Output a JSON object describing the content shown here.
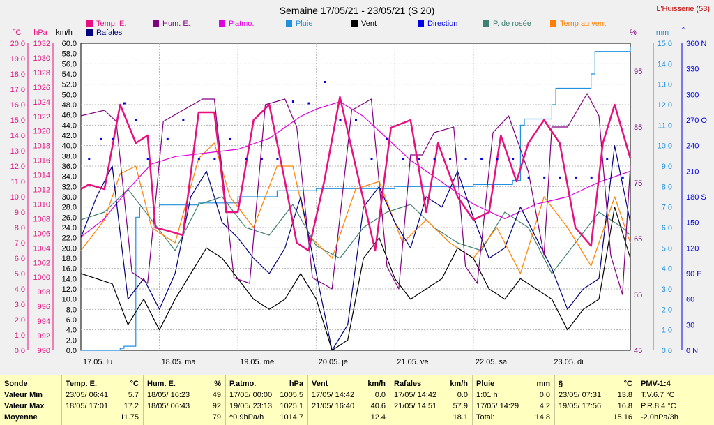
{
  "title": "Semaine 17/05/21 - 23/05/21 (S 20)",
  "station": "L'Huisserie (53)",
  "legend": [
    {
      "label": "Temp. E.",
      "color": "#e8107f"
    },
    {
      "label": "Hum. E.",
      "color": "#800080"
    },
    {
      "label": "P.atmo.",
      "color": "#e000e0"
    },
    {
      "label": "Pluie",
      "color": "#1e90e0"
    },
    {
      "label": "Vent",
      "color": "#000000"
    },
    {
      "label": "Direction",
      "color": "#0000e8"
    },
    {
      "label": "P. de rosée",
      "color": "#408070"
    },
    {
      "label": "Temp au vent",
      "color": "#ff8000"
    },
    {
      "label": "Rafales",
      "color": "#000080"
    }
  ],
  "axis_units": {
    "temp": "°C",
    "press": "hPa",
    "wind": "km/h",
    "hum": "%",
    "rain": "mm",
    "dir": "°"
  },
  "x_labels": [
    "17.05. lu",
    "18.05. ma",
    "19.05. me",
    "20.05. je",
    "21.05. ve",
    "22.05. sa",
    "23.05. di"
  ],
  "y_temp_ticks": [
    "20.0",
    "19.0",
    "18.0",
    "17.0",
    "16.0",
    "15.0",
    "14.0",
    "13.0",
    "12.0",
    "11.0",
    "10.0",
    "9.0",
    "8.0",
    "7.0",
    "6.0",
    "5.0",
    "4.0",
    "3.0",
    "2.0",
    "1.0",
    "0.0"
  ],
  "y_press_ticks": [
    "1032",
    "1030",
    "1028",
    "1026",
    "1024",
    "1022",
    "1020",
    "1018",
    "1016",
    "1014",
    "1012",
    "1010",
    "1008",
    "1006",
    "1004",
    "1002",
    "1000",
    "998",
    "996",
    "994",
    "992",
    "990"
  ],
  "y_wind_ticks": [
    "60.0",
    "58.0",
    "56.0",
    "54.0",
    "52.0",
    "50.0",
    "48.0",
    "46.0",
    "44.0",
    "42.0",
    "40.0",
    "38.0",
    "36.0",
    "34.0",
    "32.0",
    "30.0",
    "28.0",
    "26.0",
    "24.0",
    "22.0",
    "20.0",
    "18.0",
    "16.0",
    "14.0",
    "12.0",
    "10.0",
    "8.0",
    "6.0",
    "4.0",
    "2.0",
    "0.0"
  ],
  "y_hum_ticks": [
    "95",
    "85",
    "75",
    "65",
    "55",
    "45"
  ],
  "y_rain_ticks": [
    "15.0",
    "14.0",
    "13.0",
    "12.0",
    "11.0",
    "10.0",
    "9.0",
    "8.0",
    "7.0",
    "6.0",
    "5.0",
    "4.0",
    "3.0",
    "2.0",
    "1.0",
    "0.0"
  ],
  "y_dir_ticks": [
    "360 N",
    "330",
    "300",
    "270 O",
    "240",
    "210",
    "180 S",
    "150",
    "120",
    "90 E",
    "60",
    "30",
    "0 N"
  ],
  "chart_data": {
    "type": "line",
    "title": "Semaine 17/05/21 - 23/05/21 (S 20)",
    "xlabel": "",
    "ylabel": "",
    "xlim": [
      0,
      7
    ],
    "grid": true,
    "series": [
      {
        "name": "Temp. E.",
        "unit": "°C",
        "ylim": [
          0,
          20
        ],
        "x": [
          0,
          0.1,
          0.3,
          0.5,
          0.7,
          0.85,
          0.95,
          1.1,
          1.3,
          1.5,
          1.7,
          1.85,
          2.0,
          2.2,
          2.4,
          2.6,
          2.75,
          2.9,
          3.1,
          3.3,
          3.5,
          3.75,
          3.95,
          4.2,
          4.4,
          4.55,
          4.8,
          5.0,
          5.2,
          5.35,
          5.55,
          5.7,
          5.9,
          6.1,
          6.3,
          6.5,
          6.65,
          6.8,
          7.0
        ],
        "values": [
          10.5,
          10.8,
          10.5,
          16.0,
          13.5,
          14.0,
          8.0,
          7.8,
          7.5,
          15.5,
          15.5,
          9.0,
          9.0,
          15.0,
          16.0,
          11.0,
          7.0,
          6.5,
          11.0,
          16.5,
          12.0,
          6.5,
          14.5,
          15.0,
          9.0,
          13.5,
          10.0,
          8.5,
          9.0,
          14.0,
          11.0,
          13.5,
          15.0,
          13.5,
          8.0,
          6.8,
          13.5,
          16.0,
          12.5
        ]
      },
      {
        "name": "Hum. E.",
        "unit": "%",
        "ylim": [
          45,
          100
        ],
        "x": [
          0,
          0.3,
          0.45,
          0.65,
          0.85,
          1.05,
          1.3,
          1.55,
          1.7,
          1.95,
          2.15,
          2.35,
          2.6,
          2.75,
          2.95,
          3.2,
          3.45,
          3.7,
          3.9,
          4.05,
          4.2,
          4.35,
          4.5,
          4.75,
          4.9,
          5.05,
          5.25,
          5.45,
          5.7,
          5.9,
          6.0,
          6.2,
          6.45,
          6.6,
          6.75,
          6.9,
          7.0
        ],
        "values": [
          87,
          88,
          86,
          59,
          57,
          86,
          88,
          90,
          90,
          58,
          57,
          89,
          90,
          85,
          58,
          56,
          88,
          90,
          60,
          56,
          80,
          80,
          84,
          85,
          60,
          57,
          84,
          87,
          77,
          62,
          85,
          85,
          91,
          87,
          62,
          55,
          78
        ]
      },
      {
        "name": "P.atmo.",
        "unit": "hPa",
        "ylim": [
          990,
          1032
        ],
        "x": [
          0,
          0.3,
          0.6,
          0.9,
          1.2,
          1.6,
          2.0,
          2.4,
          2.8,
          3.0,
          3.3,
          3.6,
          3.9,
          4.2,
          4.6,
          5.0,
          5.4,
          5.8,
          6.2,
          6.6,
          7.0
        ],
        "values": [
          1005.5,
          1008,
          1012,
          1015.5,
          1016.5,
          1017,
          1017.5,
          1019,
          1022,
          1023,
          1024,
          1022,
          1019,
          1016,
          1013,
          1010,
          1008,
          1010,
          1011,
          1013,
          1014.5
        ]
      },
      {
        "name": "Pluie",
        "unit": "mm",
        "ylim": [
          0,
          15
        ],
        "x": [
          0,
          0.5,
          0.55,
          0.7,
          0.75,
          1.0,
          1.5,
          2.0,
          2.5,
          3.0,
          3.5,
          4.0,
          4.5,
          5.0,
          5.5,
          5.6,
          5.65,
          6.0,
          6.05,
          6.5,
          6.55,
          7.0
        ],
        "values": [
          0,
          0.1,
          0.2,
          6.5,
          7.0,
          7.1,
          7.2,
          7.5,
          7.8,
          7.9,
          7.9,
          8.0,
          8.0,
          8.1,
          8.3,
          11.0,
          11.3,
          12.0,
          12.8,
          13.5,
          14.6,
          14.8
        ]
      },
      {
        "name": "Vent",
        "unit": "km/h",
        "ylim": [
          0,
          60
        ],
        "x": [
          0,
          0.2,
          0.4,
          0.6,
          0.8,
          1.0,
          1.2,
          1.4,
          1.6,
          1.8,
          2.0,
          2.2,
          2.4,
          2.6,
          2.8,
          3.0,
          3.2,
          3.4,
          3.6,
          3.8,
          4.0,
          4.2,
          4.4,
          4.6,
          4.8,
          5.0,
          5.2,
          5.4,
          5.6,
          5.8,
          6.0,
          6.2,
          6.4,
          6.6,
          6.8,
          7.0
        ],
        "values": [
          15,
          14,
          13,
          5,
          10,
          4,
          10,
          15,
          20,
          18,
          14,
          10,
          8,
          10,
          15,
          10,
          0,
          2,
          18,
          22,
          14,
          10,
          12,
          14,
          20,
          18,
          12,
          10,
          14,
          12,
          10,
          4,
          8,
          10,
          28,
          18
        ]
      },
      {
        "name": "Rafales",
        "unit": "km/h",
        "ylim": [
          0,
          60
        ],
        "x": [
          0,
          0.2,
          0.4,
          0.6,
          0.8,
          1.0,
          1.2,
          1.4,
          1.6,
          1.8,
          2.0,
          2.2,
          2.4,
          2.6,
          2.8,
          3.0,
          3.2,
          3.4,
          3.6,
          3.8,
          4.0,
          4.2,
          4.4,
          4.6,
          4.8,
          5.0,
          5.2,
          5.4,
          5.6,
          5.8,
          6.0,
          6.2,
          6.4,
          6.6,
          6.8,
          7.0
        ],
        "values": [
          22,
          30,
          36,
          10,
          14,
          8,
          15,
          30,
          35,
          25,
          22,
          18,
          15,
          20,
          30,
          15,
          0,
          5,
          28,
          32,
          25,
          20,
          30,
          28,
          35,
          26,
          18,
          20,
          28,
          22,
          16,
          8,
          12,
          14,
          40,
          25
        ]
      },
      {
        "name": "P. de rosée",
        "unit": "°C",
        "ylim": [
          0,
          20
        ],
        "x": [
          0,
          0.3,
          0.6,
          0.9,
          1.2,
          1.5,
          1.8,
          2.1,
          2.4,
          2.7,
          3.0,
          3.3,
          3.6,
          3.9,
          4.2,
          4.5,
          4.8,
          5.1,
          5.4,
          5.7,
          6.0,
          6.3,
          6.6,
          6.9,
          7.0
        ],
        "values": [
          8.5,
          9.0,
          10.5,
          8.5,
          6.5,
          9.5,
          10.0,
          8.0,
          7.5,
          9.5,
          6.8,
          6.0,
          8.0,
          9.0,
          9.5,
          8.0,
          7.0,
          6.5,
          9.0,
          8.0,
          5.0,
          7.0,
          9.0,
          8.0,
          7.5
        ]
      },
      {
        "name": "Temp au vent",
        "unit": "°C",
        "ylim": [
          0,
          20
        ],
        "x": [
          0,
          0.3,
          0.5,
          0.7,
          0.9,
          1.2,
          1.5,
          1.7,
          1.9,
          2.2,
          2.5,
          2.7,
          2.9,
          3.2,
          3.5,
          3.8,
          4.1,
          4.4,
          4.7,
          5.0,
          5.3,
          5.6,
          5.9,
          6.2,
          6.5,
          6.8,
          7.0
        ],
        "values": [
          6.5,
          8.5,
          11.5,
          12.0,
          8.0,
          7.0,
          12.5,
          13.5,
          10.0,
          8.0,
          12.0,
          12.0,
          7.5,
          6.0,
          10.5,
          11.0,
          7.0,
          8.5,
          7.0,
          6.0,
          8.0,
          5.0,
          10.0,
          8.0,
          5.5,
          10.0,
          7.0
        ]
      },
      {
        "name": "Direction",
        "unit": "°",
        "ylim": [
          0,
          360
        ],
        "x": [
          0.1,
          0.25,
          0.4,
          0.55,
          0.7,
          0.85,
          1.1,
          1.3,
          1.5,
          1.7,
          1.9,
          2.1,
          2.3,
          2.5,
          2.7,
          2.9,
          3.1,
          3.3,
          3.5,
          3.7,
          3.9,
          4.1,
          4.3,
          4.5,
          4.7,
          4.9,
          5.1,
          5.3,
          5.5,
          5.7,
          5.9,
          6.1,
          6.3,
          6.5,
          6.7,
          6.9
        ],
        "values": [
          225,
          248,
          248,
          290,
          270,
          225,
          248,
          270,
          225,
          225,
          248,
          225,
          225,
          225,
          292,
          290,
          315,
          270,
          270,
          225,
          248,
          225,
          225,
          225,
          225,
          225,
          225,
          225,
          225,
          203,
          203,
          203,
          203,
          203,
          225,
          203
        ]
      }
    ]
  },
  "summary": {
    "rows": [
      "Sonde",
      "Valeur Min",
      "Valeur Max",
      "Moyenne"
    ],
    "temp": {
      "head": "Temp. E.",
      "unit": "°C",
      "min_time": "23/05/ 06:41",
      "min": "5.7",
      "max_time": "18/05/ 17:01",
      "max": "17.2",
      "avg": "11.75"
    },
    "hum": {
      "head": "Hum. E.",
      "unit": "%",
      "min_time": "18/05/ 16:23",
      "min": "49",
      "max_time": "18/05/ 06:43",
      "max": "92",
      "avg": "79"
    },
    "press": {
      "head": "P.atmo.",
      "unit": "hPa",
      "min_time": "17/05/ 00:00",
      "min": "1005.5",
      "max_time": "19/05/ 23:13",
      "max": "1025.1",
      "trend": "^0.9hPa/h",
      "avg": "1014.7"
    },
    "wind": {
      "head": "Vent",
      "unit": "km/h",
      "min_time": "17/05/ 14:42",
      "min": "0.0",
      "max_time": "21/05/ 16:40",
      "max": "40.6",
      "avg": "12.4"
    },
    "gust": {
      "head": "Rafales",
      "unit": "km/h",
      "min_time": "17/05/ 14:42",
      "min": "0.0",
      "max_time": "21/05/ 14:51",
      "max": "57.9",
      "avg": "18.1"
    },
    "rain": {
      "head": "Pluie",
      "unit": "mm",
      "r1": "1:01 h",
      "r1v": "0.0",
      "r2": "17/05/ 14:29",
      "r2v": "4.2",
      "r3": "Total:",
      "r3v": "14.8"
    },
    "sect": {
      "head": "§",
      "unit": "°C",
      "r1": "23/05/ 07:31",
      "r1v": "13.8",
      "r2": "19/05/ 17:56",
      "r2v": "16.8",
      "avg": "15.16"
    },
    "pmv": {
      "head": "PMV-1:4",
      "r1": "T.V.6.7 °C",
      "r2": "P.R.8.4 °C",
      "r3": "-2.0hPa/3h"
    }
  }
}
